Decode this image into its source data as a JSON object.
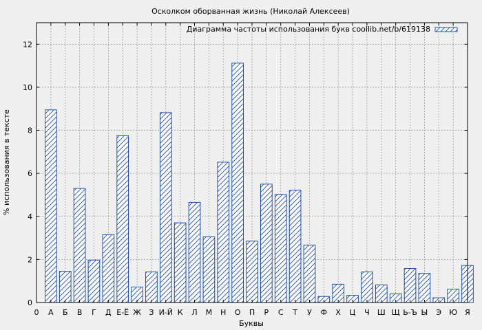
{
  "chart_data": {
    "type": "bar",
    "title": "Осколком оборванная жизнь  (Николай Алексеев)",
    "xlabel": "Буквы",
    "ylabel": "% использования в тексте",
    "legend": "Диаграмма частоты использования букв coollib.net/b/619138",
    "legend_position": "top-right",
    "grid": true,
    "ylim": [
      0,
      13
    ],
    "yticks": [
      0,
      2,
      4,
      6,
      8,
      10,
      12
    ],
    "x_origin_label": "0",
    "categories": [
      "А",
      "Б",
      "В",
      "Г",
      "Д",
      "Е-Ё",
      "Ж",
      "З",
      "И-Й",
      "К",
      "Л",
      "М",
      "Н",
      "О",
      "П",
      "Р",
      "С",
      "Т",
      "У",
      "Ф",
      "Х",
      "Ц",
      "Ч",
      "Ш",
      "Щ",
      "Ь-Ъ",
      "Ы",
      "Э",
      "Ю",
      "Я"
    ],
    "values": [
      8.95,
      1.45,
      5.3,
      1.97,
      3.15,
      7.75,
      0.72,
      1.42,
      8.82,
      3.7,
      4.65,
      3.05,
      6.52,
      11.12,
      2.85,
      5.5,
      5.02,
      5.22,
      2.67,
      0.28,
      0.85,
      0.33,
      1.42,
      0.82,
      0.4,
      1.58,
      1.35,
      0.22,
      0.62,
      1.72
    ],
    "colors": {
      "bar_stroke": "#1f4fa8",
      "background": "#f0f0f0",
      "grid": "#9a9a9a"
    }
  }
}
